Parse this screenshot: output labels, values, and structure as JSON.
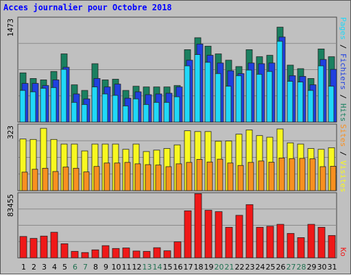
{
  "title": "Acces journalier pour Octobre 2018",
  "colors": {
    "background": "#c0c0c0",
    "hits": "#1a8060",
    "fichiers": "#2040e0",
    "pages": "#20d8f8",
    "visites": "#f8f820",
    "sites": "#f89020",
    "ko": "#f01818",
    "weekday_label": "#000000",
    "weekend_label": "#207050",
    "title": "#0000ff"
  },
  "chart_data": [
    {
      "type": "bar",
      "panel": "top",
      "ymax_label": "1473",
      "legend": {
        "pages": "Pages",
        "sep1": " / ",
        "fichiers": "Fichiers",
        "sep2": " / ",
        "hits": "Hits"
      },
      "ylim": [
        0,
        1473
      ],
      "categories": [
        "1",
        "2",
        "3",
        "4",
        "5",
        "6",
        "7",
        "8",
        "9",
        "10",
        "11",
        "12",
        "13",
        "14",
        "15",
        "16",
        "17",
        "18",
        "19",
        "20",
        "21",
        "22",
        "23",
        "24",
        "25",
        "26",
        "27",
        "28",
        "29",
        "30",
        "31"
      ],
      "series": [
        {
          "name": "Hits",
          "values": [
            700,
            620,
            600,
            720,
            970,
            530,
            450,
            830,
            600,
            610,
            450,
            510,
            500,
            500,
            500,
            520,
            1030,
            1200,
            1080,
            970,
            880,
            790,
            1030,
            930,
            950,
            1350,
            810,
            760,
            620,
            1040,
            930
          ]
        },
        {
          "name": "Fichiers",
          "values": [
            550,
            550,
            520,
            600,
            780,
            400,
            330,
            620,
            500,
            540,
            340,
            430,
            390,
            400,
            410,
            500,
            880,
            1110,
            950,
            840,
            730,
            690,
            840,
            830,
            840,
            1210,
            660,
            650,
            530,
            890,
            750
          ]
        },
        {
          "name": "Pages",
          "values": [
            450,
            430,
            480,
            490,
            750,
            280,
            250,
            500,
            400,
            380,
            230,
            330,
            250,
            280,
            280,
            360,
            800,
            960,
            850,
            690,
            510,
            660,
            740,
            680,
            720,
            1150,
            580,
            570,
            450,
            800,
            510
          ]
        }
      ]
    },
    {
      "type": "bar",
      "panel": "middle",
      "ymax_label": "323",
      "legend": {
        "sites": "Sites",
        "sep": " / ",
        "visites": "Visites"
      },
      "ylim": [
        0,
        323
      ],
      "categories": [
        "1",
        "2",
        "3",
        "4",
        "5",
        "6",
        "7",
        "8",
        "9",
        "10",
        "11",
        "12",
        "13",
        "14",
        "15",
        "16",
        "17",
        "18",
        "19",
        "20",
        "21",
        "22",
        "23",
        "24",
        "25",
        "26",
        "27",
        "28",
        "29",
        "30",
        "31"
      ],
      "series": [
        {
          "name": "Visites",
          "values": [
            256,
            254,
            309,
            254,
            231,
            231,
            197,
            231,
            231,
            231,
            205,
            231,
            194,
            201,
            209,
            227,
            297,
            293,
            293,
            245,
            246,
            280,
            301,
            273,
            265,
            306,
            237,
            231,
            209,
            205,
            213
          ]
        },
        {
          "name": "Sites",
          "values": [
            92,
            106,
            111,
            95,
            117,
            111,
            93,
            120,
            137,
            137,
            140,
            133,
            129,
            127,
            119,
            133,
            140,
            155,
            142,
            156,
            137,
            125,
            140,
            147,
            141,
            162,
            159,
            160,
            158,
            119,
            121
          ]
        }
      ]
    },
    {
      "type": "bar",
      "panel": "bottom",
      "ymax_label": "83455",
      "legend": {
        "ko": "Ko"
      },
      "ylim": [
        0,
        83455
      ],
      "categories": [
        "1",
        "2",
        "3",
        "4",
        "5",
        "6",
        "7",
        "8",
        "9",
        "10",
        "11",
        "12",
        "13",
        "14",
        "15",
        "16",
        "17",
        "18",
        "19",
        "20",
        "21",
        "22",
        "23",
        "24",
        "25",
        "26",
        "27",
        "28",
        "29",
        "30",
        "31"
      ],
      "weekend_days": [
        "6",
        "7",
        "13",
        "14",
        "20",
        "21",
        "27",
        "28"
      ],
      "series": [
        {
          "name": "Ko",
          "values": [
            28000,
            25500,
            28500,
            33500,
            18500,
            8500,
            7000,
            10500,
            16000,
            12300,
            13000,
            9000,
            8500,
            13300,
            9300,
            21000,
            61600,
            84000,
            62300,
            60500,
            40000,
            55700,
            69700,
            40000,
            41400,
            43900,
            32000,
            26500,
            43900,
            40000,
            29300
          ]
        }
      ]
    }
  ]
}
